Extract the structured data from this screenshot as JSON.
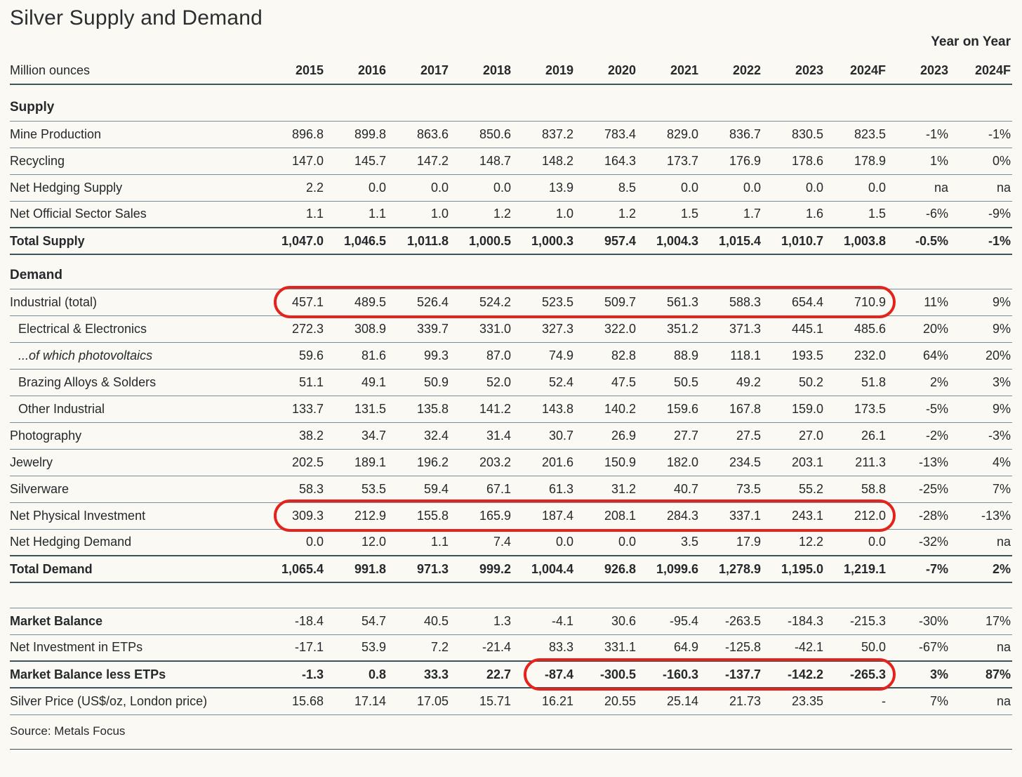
{
  "title": "Silver Supply and Demand",
  "unit_label": "Million ounces",
  "year_on_year_label": "Year on Year",
  "source": "Source: Metals Focus",
  "colors": {
    "background": "#faf9f4",
    "text": "#26292b",
    "rule_light": "#78909b",
    "rule_dark": "#3c525c",
    "highlight_red": "#e3241c"
  },
  "columns": [
    "2015",
    "2016",
    "2017",
    "2018",
    "2019",
    "2020",
    "2021",
    "2022",
    "2023",
    "2024F",
    "2023",
    "2024F"
  ],
  "rows": [
    {
      "type": "section",
      "label": "Supply",
      "rule": "light"
    },
    {
      "type": "data",
      "label": "Mine Production",
      "rule": "light",
      "values": [
        "896.8",
        "899.8",
        "863.6",
        "850.6",
        "837.2",
        "783.4",
        "829.0",
        "836.7",
        "830.5",
        "823.5",
        "-1%",
        "-1%"
      ]
    },
    {
      "type": "data",
      "label": "Recycling",
      "rule": "light",
      "values": [
        "147.0",
        "145.7",
        "147.2",
        "148.7",
        "148.2",
        "164.3",
        "173.7",
        "176.9",
        "178.6",
        "178.9",
        "1%",
        "0%"
      ]
    },
    {
      "type": "data",
      "label": "Net Hedging Supply",
      "rule": "light",
      "values": [
        "2.2",
        "0.0",
        "0.0",
        "0.0",
        "13.9",
        "8.5",
        "0.0",
        "0.0",
        "0.0",
        "0.0",
        "na",
        "na"
      ]
    },
    {
      "type": "data",
      "label": "Net Official Sector Sales",
      "rule": "dark",
      "values": [
        "1.1",
        "1.1",
        "1.0",
        "1.2",
        "1.0",
        "1.2",
        "1.5",
        "1.7",
        "1.6",
        "1.5",
        "-6%",
        "-9%"
      ]
    },
    {
      "type": "total",
      "label": "Total Supply",
      "rule": "dark",
      "values": [
        "1,047.0",
        "1,046.5",
        "1,011.8",
        "1,000.5",
        "1,000.3",
        "957.4",
        "1,004.3",
        "1,015.4",
        "1,010.7",
        "1,003.8",
        "-0.5%",
        "-1%"
      ]
    },
    {
      "type": "section",
      "label": "Demand",
      "rule": "light",
      "gap": true
    },
    {
      "type": "data",
      "label": "Industrial (total)",
      "rule": "light",
      "highlight": [
        0,
        9
      ],
      "values": [
        "457.1",
        "489.5",
        "526.4",
        "524.2",
        "523.5",
        "509.7",
        "561.3",
        "588.3",
        "654.4",
        "710.9",
        "11%",
        "9%"
      ]
    },
    {
      "type": "data",
      "label": "Electrical & Electronics",
      "indent": true,
      "rule": "light",
      "values": [
        "272.3",
        "308.9",
        "339.7",
        "331.0",
        "327.3",
        "322.0",
        "351.2",
        "371.3",
        "445.1",
        "485.6",
        "20%",
        "9%"
      ]
    },
    {
      "type": "data",
      "label": "...of which photovoltaics",
      "indent": true,
      "italic": true,
      "rule": "light",
      "values": [
        "59.6",
        "81.6",
        "99.3",
        "87.0",
        "74.9",
        "82.8",
        "88.9",
        "118.1",
        "193.5",
        "232.0",
        "64%",
        "20%"
      ]
    },
    {
      "type": "data",
      "label": "Brazing Alloys & Solders",
      "indent": true,
      "rule": "light",
      "values": [
        "51.1",
        "49.1",
        "50.9",
        "52.0",
        "52.4",
        "47.5",
        "50.5",
        "49.2",
        "50.2",
        "51.8",
        "2%",
        "3%"
      ]
    },
    {
      "type": "data",
      "label": "Other Industrial",
      "indent": true,
      "rule": "light",
      "values": [
        "133.7",
        "131.5",
        "135.8",
        "141.2",
        "143.8",
        "140.2",
        "159.6",
        "167.8",
        "159.0",
        "173.5",
        "-5%",
        "9%"
      ]
    },
    {
      "type": "data",
      "label": "Photography",
      "rule": "light",
      "values": [
        "38.2",
        "34.7",
        "32.4",
        "31.4",
        "30.7",
        "26.9",
        "27.7",
        "27.5",
        "27.0",
        "26.1",
        "-2%",
        "-3%"
      ]
    },
    {
      "type": "data",
      "label": "Jewelry",
      "rule": "light",
      "values": [
        "202.5",
        "189.1",
        "196.2",
        "203.2",
        "201.6",
        "150.9",
        "182.0",
        "234.5",
        "203.1",
        "211.3",
        "-13%",
        "4%"
      ]
    },
    {
      "type": "data",
      "label": "Silverware",
      "rule": "light",
      "values": [
        "58.3",
        "53.5",
        "59.4",
        "67.1",
        "61.3",
        "31.2",
        "40.7",
        "73.5",
        "55.2",
        "58.8",
        "-25%",
        "7%"
      ]
    },
    {
      "type": "data",
      "label": "Net Physical Investment",
      "rule": "light",
      "highlight": [
        0,
        9
      ],
      "values": [
        "309.3",
        "212.9",
        "155.8",
        "165.9",
        "187.4",
        "208.1",
        "284.3",
        "337.1",
        "243.1",
        "212.0",
        "-28%",
        "-13%"
      ]
    },
    {
      "type": "data",
      "label": "Net Hedging Demand",
      "rule": "dark",
      "values": [
        "0.0",
        "12.0",
        "1.1",
        "7.4",
        "0.0",
        "0.0",
        "3.5",
        "17.9",
        "12.2",
        "0.0",
        "-32%",
        "na"
      ]
    },
    {
      "type": "total",
      "label": "Total Demand",
      "rule": "dark",
      "values": [
        "1,065.4",
        "991.8",
        "971.3",
        "999.2",
        "1,004.4",
        "926.8",
        "1,099.6",
        "1,278.9",
        "1,195.0",
        "1,219.1",
        "-7%",
        "2%"
      ]
    },
    {
      "type": "spacer",
      "rule": "light"
    },
    {
      "type": "data",
      "label": "Market Balance",
      "label_bold": true,
      "rule": "light",
      "values": [
        "-18.4",
        "54.7",
        "40.5",
        "1.3",
        "-4.1",
        "30.6",
        "-95.4",
        "-263.5",
        "-184.3",
        "-215.3",
        "-30%",
        "17%"
      ]
    },
    {
      "type": "data",
      "label": "Net Investment in ETPs",
      "rule": "dark",
      "values": [
        "-17.1",
        "53.9",
        "7.2",
        "-21.4",
        "83.3",
        "331.1",
        "64.9",
        "-125.8",
        "-42.1",
        "50.0",
        "-67%",
        "na"
      ]
    },
    {
      "type": "total",
      "label": "Market Balance less ETPs",
      "rule": "dark",
      "highlight": [
        4,
        9
      ],
      "values": [
        "-1.3",
        "0.8",
        "33.3",
        "22.7",
        "-87.4",
        "-300.5",
        "-160.3",
        "-137.7",
        "-142.2",
        "-265.3",
        "3%",
        "87%"
      ]
    },
    {
      "type": "data",
      "label": "Silver Price (US$/oz, London price)",
      "rule": "light",
      "values": [
        "15.68",
        "17.14",
        "17.05",
        "15.71",
        "16.21",
        "20.55",
        "25.14",
        "21.73",
        "23.35",
        "-",
        "7%",
        "na"
      ]
    }
  ]
}
